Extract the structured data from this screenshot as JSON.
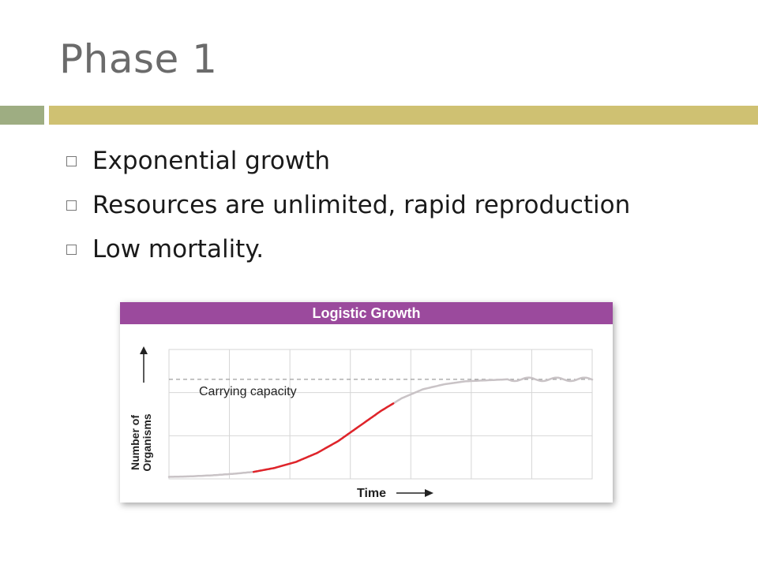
{
  "slide": {
    "title": "Phase 1",
    "bullets": [
      "Exponential growth",
      "Resources are unlimited, rapid reproduction",
      "Low mortality."
    ],
    "colors": {
      "title": "#6b6b6b",
      "accent_green": "#9ead82",
      "accent_gold": "#cfc172"
    }
  },
  "chart_data": {
    "type": "line",
    "title": "Logistic Growth",
    "xlabel": "Time",
    "ylabel": "Number of Organisms",
    "annotations": [
      "Carrying capacity"
    ],
    "carrying_capacity": 1.0,
    "xlim": [
      0,
      1
    ],
    "ylim": [
      0,
      1.3
    ],
    "grid": true,
    "colors": {
      "header": "#9b4a9d",
      "highlight_segment": "#e0242a",
      "curve": "#c9c3c6",
      "capacity_line": "#888888"
    },
    "curve": {
      "x": [
        0,
        0.05,
        0.1,
        0.15,
        0.2,
        0.25,
        0.3,
        0.35,
        0.4,
        0.45,
        0.5,
        0.55,
        0.6,
        0.65,
        0.7,
        0.75,
        0.8,
        0.85,
        0.9,
        0.95,
        1.0
      ],
      "y": [
        0.02,
        0.025,
        0.035,
        0.05,
        0.07,
        0.11,
        0.17,
        0.26,
        0.38,
        0.53,
        0.68,
        0.81,
        0.9,
        0.95,
        0.98,
        0.99,
        1.0,
        1.0,
        1.0,
        1.0,
        1.0
      ]
    },
    "highlight_range": [
      0.2,
      0.53
    ]
  }
}
